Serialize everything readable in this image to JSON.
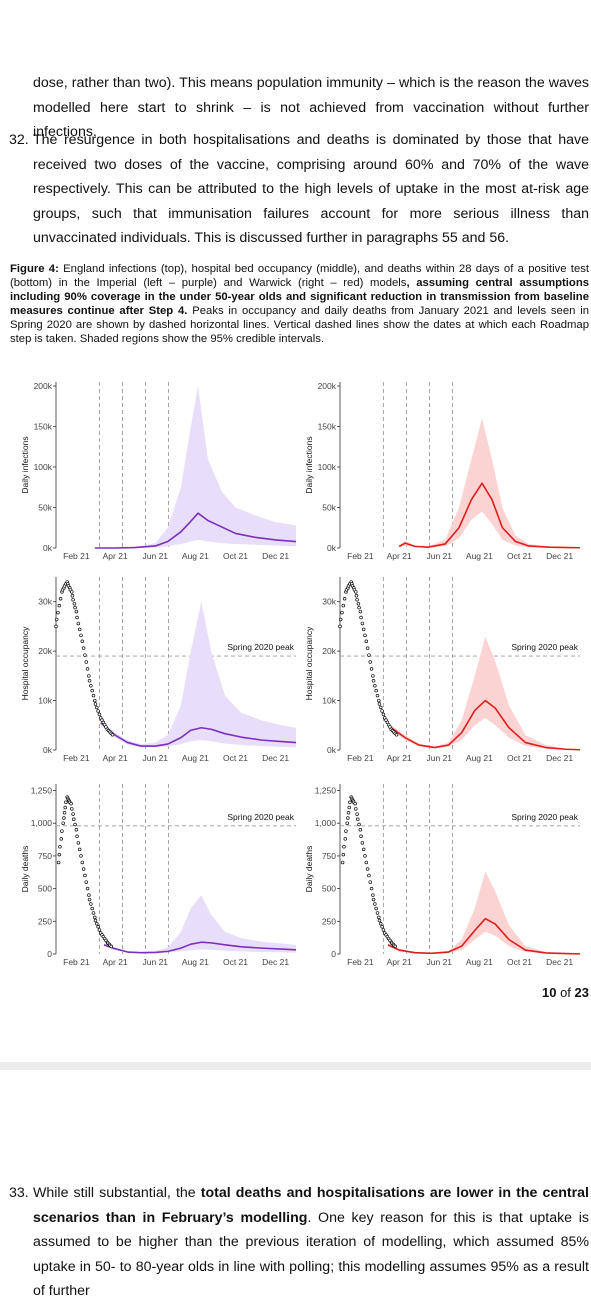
{
  "paragraph_prev": {
    "text": "dose, rather than two). This means population immunity – which is the reason the waves modelled here start to shrink – is not achieved from vaccination without further infections."
  },
  "paragraph_32": {
    "number": "32.",
    "text": "The resurgence in both hospitalisations and deaths is dominated by those that have received two doses of the vaccine, comprising around 60% and 70% of the wave respectively. This can be attributed to the high levels of uptake in the most at-risk age groups, such that immunisation failures account for more serious illness than unvaccinated individuals. This is discussed further in paragraphs 55 and 56."
  },
  "figure_caption": {
    "label": "Figure 4:",
    "part1": " England infections (top), hospital bed occupancy (middle), and deaths within 28 days of a positive test (bottom) in the Imperial (left – purple) and Warwick (right – red) models",
    "bold": ", assuming central assumptions including 90% coverage in the under 50-year olds and significant reduction in transmission from baseline measures continue after Step 4.",
    "part2": " Peaks in occupancy and daily deaths from January 2021 and levels seen in Spring 2020 are shown by dashed horizontal lines. Vertical dashed lines show the dates at which each Roadmap step is taken. Shaded regions show the 95% credible intervals."
  },
  "page_number": {
    "current": "10",
    "of": "of",
    "total": "23"
  },
  "paragraph_33": {
    "number": "33.",
    "text_a": "While still substantial, the ",
    "bold": "total deaths and hospitalisations are lower in the central scenarios than in February’s modelling",
    "text_b": ". One key reason for this is that uptake is assumed to be higher than the previous iteration of modelling, which assumed 85% uptake in 50- to 80-year olds in line with polling; this modelling assumes 95% as a result of further"
  },
  "colors": {
    "imperial": "#7b2fbe",
    "imperial_band": "#e9defa",
    "warwick": "#e01e1e",
    "warwick_band": "#fcd3d3",
    "obs": "#111111",
    "dash": "#9a9a9a"
  },
  "chart_data": [
    {
      "type": "line",
      "title": "",
      "model": "Imperial",
      "ylabel": "Daily infections",
      "x_ticks": [
        "Feb 21",
        "Apr 21",
        "Jun 21",
        "Aug 21",
        "Oct 21",
        "Dec 21"
      ],
      "y_ticks": [
        "0k",
        "50k",
        "100k",
        "150k",
        "200k"
      ],
      "ylim": [
        0,
        205000
      ],
      "step_dates": [
        "2021-03-08",
        "2021-04-12",
        "2021-05-17",
        "2021-06-21"
      ],
      "series": [
        {
          "x": [
            "2021-03-01",
            "2021-04-01",
            "2021-05-01",
            "2021-06-01",
            "2021-06-20",
            "2021-07-10",
            "2021-07-25",
            "2021-08-05",
            "2021-08-20",
            "2021-09-10",
            "2021-10-01",
            "2021-11-01",
            "2021-12-01",
            "2022-01-01"
          ],
          "y": [
            0,
            0,
            500,
            2500,
            8000,
            20000,
            33000,
            43000,
            34000,
            26000,
            18000,
            13000,
            10000,
            8000
          ],
          "lower": [
            0,
            0,
            0,
            500,
            2000,
            5000,
            8000,
            10000,
            8000,
            6000,
            5000,
            4000,
            3000,
            2000
          ],
          "upper": [
            0,
            0,
            1500,
            6000,
            25000,
            75000,
            150000,
            200000,
            110000,
            70000,
            50000,
            40000,
            32000,
            28000
          ]
        }
      ]
    },
    {
      "type": "line",
      "title": "",
      "model": "Warwick",
      "ylabel": "Daily infections",
      "x_ticks": [
        "Feb 21",
        "Apr 21",
        "Jun 21",
        "Aug 21",
        "Oct 21",
        "Dec 21"
      ],
      "y_ticks": [
        "0k",
        "50k",
        "100k",
        "150k",
        "200k"
      ],
      "ylim": [
        0,
        205000
      ],
      "step_dates": [
        "2021-03-08",
        "2021-04-12",
        "2021-05-17",
        "2021-06-21"
      ],
      "series": [
        {
          "x": [
            "2021-04-01",
            "2021-04-10",
            "2021-04-25",
            "2021-05-15",
            "2021-06-10",
            "2021-07-01",
            "2021-07-20",
            "2021-08-05",
            "2021-08-20",
            "2021-09-05",
            "2021-09-25",
            "2021-10-15",
            "2021-11-15",
            "2021-12-15",
            "2022-01-01"
          ],
          "y": [
            2000,
            6000,
            2000,
            1000,
            5000,
            25000,
            60000,
            80000,
            60000,
            25000,
            8000,
            2500,
            1000,
            500,
            300
          ],
          "lower": [
            1000,
            3000,
            1000,
            500,
            2000,
            12000,
            35000,
            45000,
            30000,
            10000,
            3000,
            1000,
            500,
            200,
            100
          ],
          "upper": [
            3000,
            9000,
            3000,
            2000,
            10000,
            50000,
            110000,
            160000,
            110000,
            50000,
            15000,
            5000,
            2000,
            1000,
            600
          ]
        }
      ]
    },
    {
      "type": "line",
      "title": "",
      "model": "Imperial",
      "ylabel": "Hospital occupancy",
      "x_ticks": [
        "Feb 21",
        "Apr 21",
        "Jun 21",
        "Aug 21",
        "Oct 21",
        "Dec 21"
      ],
      "y_ticks": [
        "0k",
        "10k",
        "20k",
        "30k"
      ],
      "ylim": [
        0,
        35000
      ],
      "hline": {
        "value": 19000,
        "label": "Spring 2020 peak"
      },
      "step_dates": [
        "2021-03-08",
        "2021-04-12",
        "2021-05-17",
        "2021-06-21"
      ],
      "observed": {
        "x": [
          "2021-01-01",
          "2021-01-10",
          "2021-01-18",
          "2021-01-25",
          "2021-02-01",
          "2021-02-10",
          "2021-02-20",
          "2021-03-01",
          "2021-03-10",
          "2021-03-20",
          "2021-03-30"
        ],
        "y": [
          25000,
          32000,
          34000,
          32000,
          28000,
          22000,
          15000,
          10000,
          6500,
          4200,
          2800
        ]
      },
      "series": [
        {
          "x": [
            "2021-03-10",
            "2021-04-01",
            "2021-04-20",
            "2021-05-10",
            "2021-06-01",
            "2021-06-20",
            "2021-07-10",
            "2021-07-25",
            "2021-08-10",
            "2021-08-25",
            "2021-09-15",
            "2021-10-10",
            "2021-11-10",
            "2021-12-10",
            "2022-01-01"
          ],
          "y": [
            5500,
            3000,
            1500,
            800,
            800,
            1200,
            2500,
            4000,
            4500,
            4200,
            3300,
            2600,
            2000,
            1700,
            1500
          ],
          "lower": [
            5000,
            2500,
            1000,
            600,
            500,
            700,
            1200,
            1800,
            2000,
            1800,
            1300,
            1000,
            800,
            600,
            500
          ],
          "upper": [
            6000,
            3500,
            2000,
            1200,
            1500,
            3000,
            9000,
            20000,
            30000,
            20000,
            11000,
            7500,
            6000,
            5000,
            4500
          ]
        }
      ]
    },
    {
      "type": "line",
      "title": "",
      "model": "Warwick",
      "ylabel": "Hospital occupancy",
      "x_ticks": [
        "Feb 21",
        "Apr 21",
        "Jun 21",
        "Aug 21",
        "Oct 21",
        "Dec 21"
      ],
      "y_ticks": [
        "0k",
        "10k",
        "20k",
        "30k"
      ],
      "ylim": [
        0,
        35000
      ],
      "hline": {
        "value": 19000,
        "label": "Spring 2020 peak"
      },
      "step_dates": [
        "2021-03-08",
        "2021-04-12",
        "2021-05-17",
        "2021-06-21"
      ],
      "observed": {
        "x": [
          "2021-01-01",
          "2021-01-10",
          "2021-01-18",
          "2021-01-25",
          "2021-02-01",
          "2021-02-10",
          "2021-02-20",
          "2021-03-01",
          "2021-03-10",
          "2021-03-20",
          "2021-03-30"
        ],
        "y": [
          25000,
          32000,
          34000,
          32000,
          28000,
          22000,
          15000,
          10000,
          6500,
          4200,
          2800
        ]
      },
      "series": [
        {
          "x": [
            "2021-03-20",
            "2021-04-10",
            "2021-05-01",
            "2021-05-25",
            "2021-06-15",
            "2021-07-05",
            "2021-07-25",
            "2021-08-10",
            "2021-08-25",
            "2021-09-15",
            "2021-10-10",
            "2021-11-10",
            "2021-12-10",
            "2022-01-01"
          ],
          "y": [
            4500,
            2500,
            1000,
            500,
            1000,
            3500,
            8000,
            10000,
            8500,
            4500,
            1500,
            500,
            150,
            50
          ],
          "lower": [
            4000,
            2000,
            800,
            400,
            700,
            2000,
            5000,
            6500,
            5000,
            2500,
            800,
            250,
            80,
            20
          ],
          "upper": [
            5000,
            3000,
            1300,
            700,
            1500,
            6000,
            15000,
            23000,
            18000,
            9000,
            3000,
            1000,
            300,
            100
          ]
        }
      ]
    },
    {
      "type": "line",
      "title": "",
      "model": "Imperial",
      "ylabel": "Daily deaths",
      "x_ticks": [
        "Feb 21",
        "Apr 21",
        "Jun 21",
        "Aug 21",
        "Oct 21",
        "Dec 21"
      ],
      "y_ticks": [
        "0",
        "250",
        "500",
        "750",
        "1,000",
        "1,250"
      ],
      "ylim": [
        0,
        1300
      ],
      "hline": {
        "value": 980,
        "label": "Spring 2020 peak"
      },
      "step_dates": [
        "2021-03-08",
        "2021-04-12",
        "2021-05-17",
        "2021-06-21"
      ],
      "observed": {
        "x": [
          "2021-01-05",
          "2021-01-12",
          "2021-01-18",
          "2021-01-24",
          "2021-02-01",
          "2021-02-10",
          "2021-02-20",
          "2021-03-01",
          "2021-03-10",
          "2021-03-20",
          "2021-03-28"
        ],
        "y": [
          700,
          1000,
          1200,
          1150,
          950,
          700,
          450,
          280,
          160,
          90,
          50
        ]
      },
      "series": [
        {
          "x": [
            "2021-03-15",
            "2021-04-01",
            "2021-04-20",
            "2021-05-10",
            "2021-06-01",
            "2021-06-20",
            "2021-07-10",
            "2021-07-25",
            "2021-08-10",
            "2021-08-25",
            "2021-09-15",
            "2021-10-10",
            "2021-11-10",
            "2021-12-10",
            "2022-01-01"
          ],
          "y": [
            70,
            40,
            15,
            10,
            12,
            20,
            45,
            75,
            90,
            85,
            70,
            55,
            45,
            38,
            32
          ],
          "lower": [
            60,
            30,
            10,
            5,
            8,
            12,
            20,
            30,
            35,
            32,
            25,
            20,
            15,
            12,
            10
          ],
          "upper": [
            80,
            50,
            20,
            15,
            25,
            50,
            170,
            350,
            450,
            300,
            170,
            120,
            95,
            80,
            70
          ]
        }
      ]
    },
    {
      "type": "line",
      "title": "",
      "model": "Warwick",
      "ylabel": "Daily deaths",
      "x_ticks": [
        "Feb 21",
        "Apr 21",
        "Jun 21",
        "Aug 21",
        "Oct 21",
        "Dec 21"
      ],
      "y_ticks": [
        "0",
        "250",
        "500",
        "750",
        "1,000",
        "1,250"
      ],
      "ylim": [
        0,
        1300
      ],
      "hline": {
        "value": 980,
        "label": "Spring 2020 peak"
      },
      "step_dates": [
        "2021-03-08",
        "2021-04-12",
        "2021-05-17",
        "2021-06-21"
      ],
      "observed": {
        "x": [
          "2021-01-05",
          "2021-01-12",
          "2021-01-18",
          "2021-01-24",
          "2021-02-01",
          "2021-02-10",
          "2021-02-20",
          "2021-03-01",
          "2021-03-10",
          "2021-03-20",
          "2021-03-28"
        ],
        "y": [
          700,
          1000,
          1200,
          1150,
          950,
          700,
          450,
          280,
          160,
          90,
          50
        ]
      },
      "series": [
        {
          "x": [
            "2021-03-15",
            "2021-04-01",
            "2021-04-25",
            "2021-05-20",
            "2021-06-15",
            "2021-07-05",
            "2021-07-25",
            "2021-08-10",
            "2021-08-25",
            "2021-09-15",
            "2021-10-10",
            "2021-11-10",
            "2021-12-10",
            "2022-01-01"
          ],
          "y": [
            70,
            30,
            10,
            5,
            15,
            60,
            180,
            270,
            230,
            110,
            30,
            8,
            3,
            1
          ],
          "lower": [
            60,
            20,
            5,
            3,
            8,
            30,
            110,
            170,
            140,
            60,
            15,
            4,
            1,
            0
          ],
          "upper": [
            80,
            40,
            15,
            10,
            25,
            110,
            350,
            630,
            480,
            220,
            60,
            15,
            5,
            2
          ]
        }
      ]
    }
  ]
}
